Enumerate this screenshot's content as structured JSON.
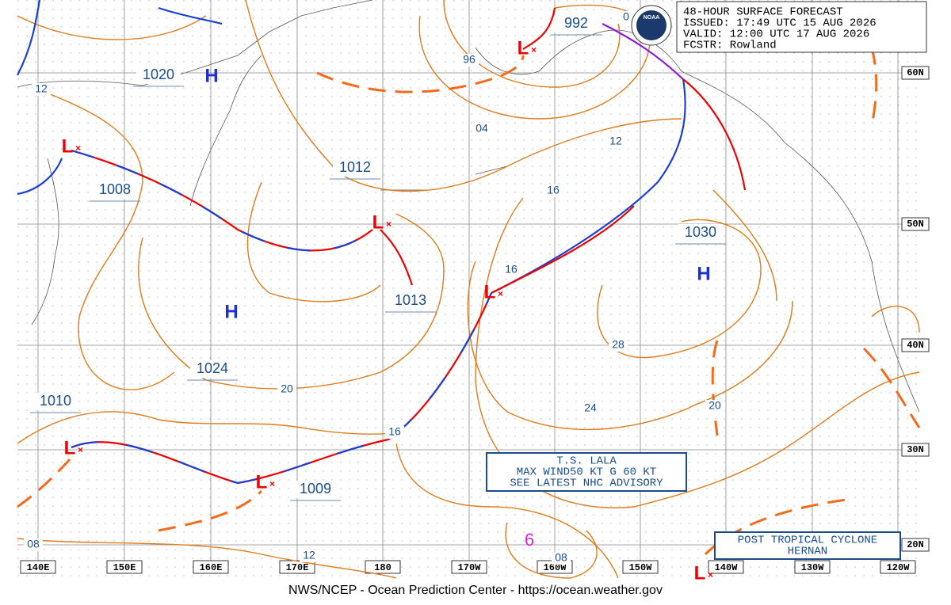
{
  "header": {
    "title": "48-HOUR SURFACE FORECAST",
    "issued": "ISSUED: 17:49 UTC 15 AUG 2026",
    "valid": "VALID:  12:00 UTC 17 AUG 2026",
    "forecaster": "FCSTR:  Rowland",
    "logo": "NOAA"
  },
  "pressure_labels": [
    "1020",
    "1008",
    "1012",
    "1013",
    "1024",
    "1010",
    "1009",
    "1030",
    "992"
  ],
  "highs": [
    "H",
    "H",
    "H"
  ],
  "lows": [
    "L",
    "L",
    "L",
    "L",
    "L",
    "L",
    "L"
  ],
  "isobar_labels": [
    "12",
    "96",
    "04",
    "12",
    "16",
    "16",
    "28",
    "24",
    "20",
    "20",
    "16",
    "12",
    "08",
    "08",
    "0"
  ],
  "latitudes": [
    "60N",
    "50N",
    "40N",
    "30N",
    "20N"
  ],
  "longitudes": [
    "140E",
    "150E",
    "160E",
    "170E",
    "180",
    "170W",
    "160W",
    "150W",
    "140W",
    "130W",
    "120W"
  ],
  "storm_box": [
    "T.S. LALA",
    "MAX WIND50 KT G 60 KT",
    "SEE LATEST NHC ADVISORY"
  ],
  "post_tropical_box": [
    "POST TROPICAL CYCLONE",
    "HERNAN"
  ],
  "tropical_symbol": "6",
  "footer": "NWS/NCEP - Ocean Prediction Center - https://ocean.weather.gov"
}
